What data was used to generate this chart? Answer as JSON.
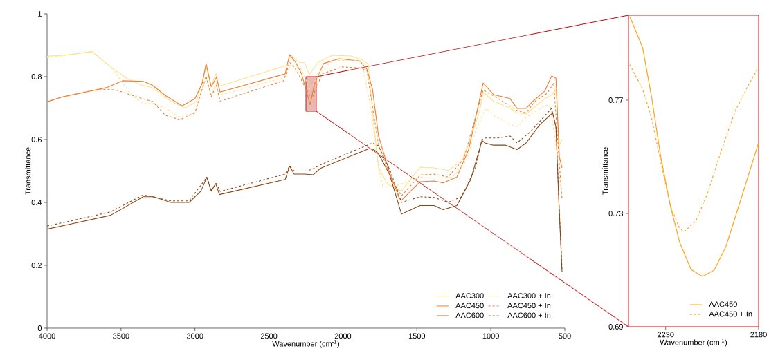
{
  "chart_data": [
    {
      "type": "line",
      "xlabel": "Wavenumber (cm$^{-1}$)",
      "ylabel": "Transmittance",
      "xlim": [
        4000,
        500
      ],
      "ylim": [
        0,
        1
      ],
      "xticks": [
        4000,
        3500,
        3000,
        2500,
        2000,
        1500,
        1000,
        500
      ],
      "yticks": [
        0,
        0.2,
        0.4,
        0.6,
        0.8,
        1
      ],
      "legend": "bottom right",
      "series": [
        {
          "name": "AAC300",
          "color": "#ffe08a",
          "line_style": "solid",
          "x": [
            4000,
            3850,
            3696,
            3570,
            3462,
            3368,
            3289,
            3163,
            3069,
            2990,
            2924,
            2890,
            2858,
            2840,
            2386,
            2350,
            2300,
            2259,
            2227,
            2166,
            2072,
            1946,
            1871,
            1830,
            1791,
            1759,
            1700,
            1604,
            1478,
            1384,
            1290,
            1197,
            1136,
            1075,
            1052,
            982,
            870,
            823,
            762,
            715,
            636,
            589,
            560,
            537,
            519
          ],
          "values": [
            0.865,
            0.87,
            0.88,
            0.831,
            0.795,
            0.774,
            0.765,
            0.722,
            0.7,
            0.72,
            0.83,
            0.77,
            0.81,
            0.769,
            0.835,
            0.868,
            0.846,
            0.844,
            0.806,
            0.846,
            0.868,
            0.866,
            0.854,
            0.84,
            0.65,
            0.51,
            0.46,
            0.436,
            0.512,
            0.51,
            0.502,
            0.531,
            0.604,
            0.692,
            0.751,
            0.722,
            0.7,
            0.685,
            0.681,
            0.7,
            0.73,
            0.743,
            0.758,
            0.582,
            0.6
          ]
        },
        {
          "name": "AAC450",
          "color": "#ed7d31",
          "line_style": "solid",
          "x": [
            4000,
            3900,
            3800,
            3700,
            3600,
            3490,
            3350,
            3289,
            3200,
            3087,
            3000,
            2950,
            2925,
            2890,
            2855,
            2830,
            2390,
            2360,
            2320,
            2280,
            2222,
            2190,
            2130,
            2025,
            1885,
            1838,
            1800,
            1759,
            1684,
            1619,
            1604,
            1478,
            1384,
            1323,
            1230,
            1150,
            1052,
            982,
            870,
            823,
            762,
            715,
            636,
            589,
            560,
            537,
            519
          ],
          "values": [
            0.72,
            0.735,
            0.745,
            0.755,
            0.765,
            0.787,
            0.785,
            0.773,
            0.74,
            0.707,
            0.73,
            0.78,
            0.842,
            0.768,
            0.798,
            0.751,
            0.809,
            0.87,
            0.846,
            0.81,
            0.711,
            0.78,
            0.842,
            0.857,
            0.85,
            0.824,
            0.76,
            0.611,
            0.494,
            0.413,
            0.407,
            0.466,
            0.468,
            0.462,
            0.481,
            0.568,
            0.78,
            0.743,
            0.73,
            0.699,
            0.699,
            0.722,
            0.754,
            0.802,
            0.795,
            0.545,
            0.51
          ]
        },
        {
          "name": "AAC600",
          "color": "#8b4513",
          "line_style": "solid",
          "x": [
            4000,
            3850,
            3570,
            3350,
            3280,
            3163,
            3040,
            2960,
            2920,
            2890,
            2860,
            2835,
            2390,
            2360,
            2330,
            2260,
            2200,
            2150,
            1824,
            1790,
            1759,
            1684,
            1604,
            1478,
            1384,
            1323,
            1230,
            1136,
            1060,
            1040,
            982,
            900,
            823,
            762,
            668,
            582,
            560,
            540,
            519
          ],
          "values": [
            0.315,
            0.33,
            0.359,
            0.418,
            0.418,
            0.4,
            0.4,
            0.436,
            0.48,
            0.436,
            0.46,
            0.425,
            0.473,
            0.516,
            0.49,
            0.49,
            0.488,
            0.509,
            0.571,
            0.568,
            0.555,
            0.488,
            0.363,
            0.39,
            0.39,
            0.377,
            0.39,
            0.473,
            0.597,
            0.589,
            0.582,
            0.582,
            0.568,
            0.589,
            0.648,
            0.685,
            0.64,
            0.4,
            0.18
          ]
        },
        {
          "name": "AAC300 + In",
          "color": "#ffe08a",
          "line_style": "dashed",
          "x": [
            4000,
            3850,
            3700,
            3570,
            3430,
            3350,
            3280,
            3200,
            3100,
            3000,
            2925,
            2890,
            2855,
            2840,
            2390,
            2350,
            2280,
            2222,
            2150,
            2072,
            1930,
            1870,
            1805,
            1759,
            1730,
            1660,
            1604,
            1478,
            1384,
            1260,
            1167,
            1104,
            1042,
            1030,
            982,
            870,
            823,
            762,
            668,
            600,
            560,
            519
          ],
          "values": [
            0.86,
            0.87,
            0.88,
            0.831,
            0.743,
            0.714,
            0.714,
            0.7,
            0.67,
            0.685,
            0.795,
            0.743,
            0.78,
            0.74,
            0.798,
            0.839,
            0.824,
            0.758,
            0.817,
            0.85,
            0.853,
            0.846,
            0.68,
            0.51,
            0.45,
            0.45,
            0.459,
            0.48,
            0.477,
            0.48,
            0.531,
            0.626,
            0.692,
            0.699,
            0.677,
            0.648,
            0.641,
            0.67,
            0.699,
            0.714,
            0.58,
            0.413
          ]
        },
        {
          "name": "AAC450 + In",
          "color": "#ed7d31",
          "line_style": "dashed",
          "x": [
            4000,
            3900,
            3800,
            3700,
            3600,
            3537,
            3350,
            3289,
            3200,
            3102,
            3000,
            2925,
            2890,
            2855,
            2830,
            2400,
            2360,
            2320,
            2212,
            2140,
            2005,
            1885,
            1838,
            1759,
            1665,
            1604,
            1478,
            1384,
            1290,
            1183,
            1136,
            1052,
            950,
            823,
            762,
            700,
            620,
            575,
            537,
            519
          ],
          "values": [
            0.72,
            0.735,
            0.745,
            0.755,
            0.76,
            0.758,
            0.729,
            0.722,
            0.677,
            0.663,
            0.685,
            0.802,
            0.736,
            0.773,
            0.722,
            0.787,
            0.846,
            0.824,
            0.729,
            0.809,
            0.831,
            0.828,
            0.82,
            0.582,
            0.466,
            0.421,
            0.487,
            0.49,
            0.481,
            0.538,
            0.619,
            0.758,
            0.73,
            0.692,
            0.685,
            0.722,
            0.747,
            0.78,
            0.523,
            0.413
          ]
        },
        {
          "name": "AAC600 + In",
          "color": "#8b4513",
          "line_style": "dashed",
          "x": [
            4000,
            3850,
            3570,
            3350,
            3163,
            3040,
            2920,
            2890,
            2855,
            2830,
            2390,
            2360,
            2330,
            2250,
            2210,
            2150,
            1800,
            1760,
            1680,
            1604,
            1478,
            1384,
            1290,
            1197,
            1104,
            1060,
            1042,
            950,
            870,
            823,
            730,
            590,
            560,
            540,
            519
          ],
          "values": [
            0.325,
            0.34,
            0.37,
            0.424,
            0.405,
            0.405,
            0.48,
            0.44,
            0.46,
            0.435,
            0.49,
            0.516,
            0.5,
            0.5,
            0.505,
            0.52,
            0.589,
            0.58,
            0.5,
            0.4,
            0.418,
            0.416,
            0.4,
            0.418,
            0.51,
            0.6,
            0.605,
            0.605,
            0.611,
            0.589,
            0.626,
            0.699,
            0.64,
            0.4,
            0.19
          ]
        }
      ]
    },
    {
      "type": "line",
      "xlabel": "Wavenumber (cm$^{-1}$)",
      "ylabel": "Transmittance",
      "xlim": [
        2250,
        2180
      ],
      "ylim": [
        0.69,
        0.8
      ],
      "xticks": [
        2230,
        2180
      ],
      "yticks": [
        0.69,
        0.73,
        0.77
      ],
      "legend": "bottom right",
      "series": [
        {
          "name": "AAC450",
          "color": "#ffa31a",
          "line_style": "solid",
          "x": [
            2249.3,
            2242.4,
            2237.5,
            2232.6,
            2227.5,
            2222.5,
            2216.3,
            2210.2,
            2203.9,
            2197.6,
            2190.2,
            2184,
            2180
          ],
          "values": [
            0.7995,
            0.7886,
            0.7708,
            0.7498,
            0.7328,
            0.7199,
            0.7102,
            0.7078,
            0.71,
            0.7183,
            0.7336,
            0.7466,
            0.755
          ]
        },
        {
          "name": "AAC450 + In",
          "color": "#ffa31a",
          "line_style": "dashed",
          "x": [
            2249.3,
            2242.4,
            2237.5,
            2232.6,
            2227.5,
            2222.5,
            2220,
            2213.9,
            2207.6,
            2200.1,
            2192.7,
            2185.2,
            2180
          ],
          "values": [
            0.7825,
            0.774,
            0.7635,
            0.748,
            0.7328,
            0.7248,
            0.7236,
            0.7272,
            0.7369,
            0.7522,
            0.766,
            0.7757,
            0.7817
          ]
        }
      ]
    }
  ]
}
